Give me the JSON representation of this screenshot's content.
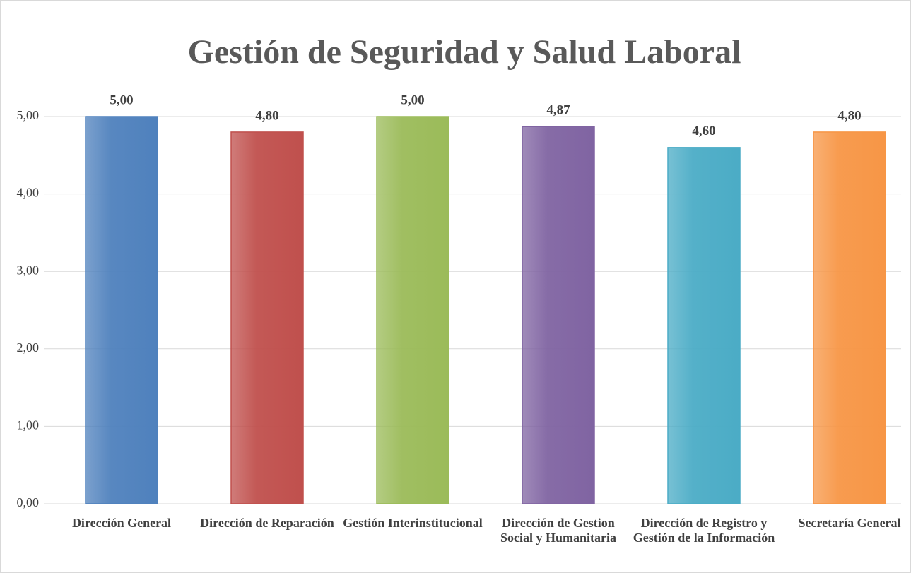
{
  "chart_data": {
    "type": "bar",
    "title": "Gestión de Seguridad y Salud Laboral",
    "categories": [
      "Dirección General",
      "Dirección de Reparación",
      "Gestión Interinstitucional",
      "Dirección de Gestion Social y Humanitaria",
      "Dirección de Registro y Gestión de la Información",
      "Secretaría General"
    ],
    "values": [
      5.0,
      4.8,
      5.0,
      4.87,
      4.6,
      4.8
    ],
    "value_labels": [
      "5,00",
      "4,80",
      "5,00",
      "4,87",
      "4,60",
      "4,80"
    ],
    "colors": [
      "#4f81bd",
      "#c0504d",
      "#9bbb59",
      "#8064a2",
      "#4bacc6",
      "#f79646"
    ],
    "ylim": [
      0,
      5
    ],
    "yticks": [
      {
        "value": 0,
        "label": "0,00"
      },
      {
        "value": 1,
        "label": "1,00"
      },
      {
        "value": 2,
        "label": "2,00"
      },
      {
        "value": 3,
        "label": "3,00"
      },
      {
        "value": 4,
        "label": "4,00"
      },
      {
        "value": 5,
        "label": "5,00"
      }
    ],
    "grid": true
  }
}
